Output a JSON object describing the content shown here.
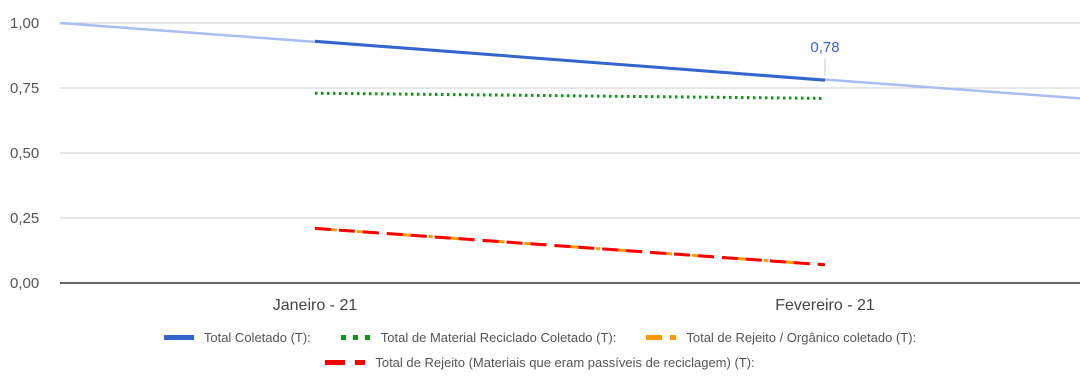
{
  "chart_data": {
    "type": "line",
    "categories": [
      "Janeiro - 21",
      "Fevereiro - 21"
    ],
    "ylim": [
      0,
      1
    ],
    "yticks": [
      "0,00",
      "0,25",
      "0,50",
      "0,75",
      "1,00"
    ],
    "ytick_values": [
      0,
      0.25,
      0.5,
      0.75,
      1.0
    ],
    "grid": true,
    "legend_position": "bottom",
    "series": [
      {
        "name": "Total Coletado (T):",
        "values": [
          0.93,
          0.78
        ],
        "color": "#3366cc",
        "style": "solid"
      },
      {
        "name": "Total de Material Reciclado Coletado (T):",
        "values": [
          0.73,
          0.71
        ],
        "color": "#109618",
        "style": "dotted"
      },
      {
        "name": "Total de Rejeito / Orgânico coletado (T):",
        "values": [
          0.21,
          0.07
        ],
        "color": "#ff9900",
        "style": "dashdot"
      },
      {
        "name": "Total de Rejeito (Materiais que eram passíveis de reciclagem) (T):",
        "values": [
          0.21,
          0.07
        ],
        "color": "#ff0000",
        "style": "dashed"
      }
    ],
    "trendline": {
      "series": "Total Coletado (T):",
      "start": 1.0,
      "end": 0.71,
      "color": "#a8bdf0"
    },
    "data_labels": [
      {
        "series": "Total Coletado (T):",
        "category": "Fevereiro - 21",
        "text": "0,78",
        "color": "#3366cc"
      }
    ]
  }
}
